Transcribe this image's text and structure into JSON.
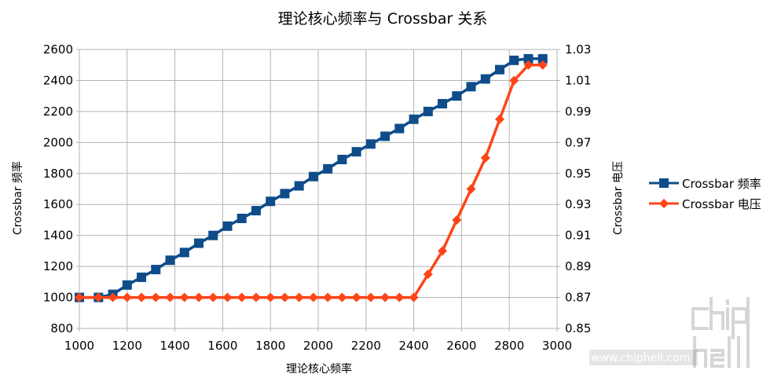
{
  "chart_data": {
    "type": "line",
    "title": "理论核心频率与 Crossbar 关系",
    "xlabel": "理论核心频率",
    "ylabel_left": "Crossbar 频率",
    "ylabel_right": "Crossbar 电压",
    "xlim": [
      1000,
      3000
    ],
    "ylim_left": [
      800,
      2600
    ],
    "ylim_right": [
      0.85,
      1.03
    ],
    "x_ticks": [
      "1000",
      "1200",
      "1400",
      "1600",
      "1800",
      "2000",
      "2200",
      "2400",
      "2600",
      "2800",
      "3000"
    ],
    "y_left_ticks": [
      "800",
      "1000",
      "1200",
      "1400",
      "1600",
      "1800",
      "2000",
      "2200",
      "2400",
      "2600"
    ],
    "y_right_ticks": [
      "0.85",
      "0.87",
      "0.89",
      "0.91",
      "0.93",
      "0.95",
      "0.97",
      "0.99",
      "1.01",
      "1.03"
    ],
    "grid": true,
    "legend_position": "right",
    "series": [
      {
        "name": "Crossbar 频率",
        "axis": "left",
        "color": "#0e4c8a",
        "marker": "square",
        "x": [
          1000,
          1080,
          1140,
          1200,
          1260,
          1320,
          1380,
          1440,
          1500,
          1560,
          1620,
          1680,
          1740,
          1800,
          1860,
          1920,
          1980,
          2040,
          2100,
          2160,
          2220,
          2280,
          2340,
          2400,
          2460,
          2520,
          2580,
          2640,
          2700,
          2760,
          2820,
          2880,
          2940
        ],
        "y": [
          1000,
          1000,
          1020,
          1080,
          1130,
          1180,
          1240,
          1290,
          1350,
          1400,
          1460,
          1510,
          1560,
          1620,
          1670,
          1720,
          1780,
          1830,
          1890,
          1940,
          1990,
          2040,
          2090,
          2150,
          2200,
          2250,
          2300,
          2360,
          2410,
          2470,
          2530,
          2540,
          2540
        ]
      },
      {
        "name": "Crossbar 电压",
        "axis": "right",
        "color": "#ff4517",
        "marker": "diamond",
        "x": [
          1000,
          1080,
          1140,
          1200,
          1260,
          1320,
          1380,
          1440,
          1500,
          1560,
          1620,
          1680,
          1740,
          1800,
          1860,
          1920,
          1980,
          2040,
          2100,
          2160,
          2220,
          2280,
          2340,
          2400,
          2460,
          2520,
          2580,
          2640,
          2700,
          2760,
          2820,
          2880,
          2940
        ],
        "y": [
          0.87,
          0.87,
          0.87,
          0.87,
          0.87,
          0.87,
          0.87,
          0.87,
          0.87,
          0.87,
          0.87,
          0.87,
          0.87,
          0.87,
          0.87,
          0.87,
          0.87,
          0.87,
          0.87,
          0.87,
          0.87,
          0.87,
          0.87,
          0.87,
          0.885,
          0.9,
          0.92,
          0.94,
          0.96,
          0.985,
          1.01,
          1.02,
          1.02
        ]
      }
    ]
  },
  "watermark": {
    "text": "www.chiphell.com",
    "logo_text": "chiphell"
  }
}
